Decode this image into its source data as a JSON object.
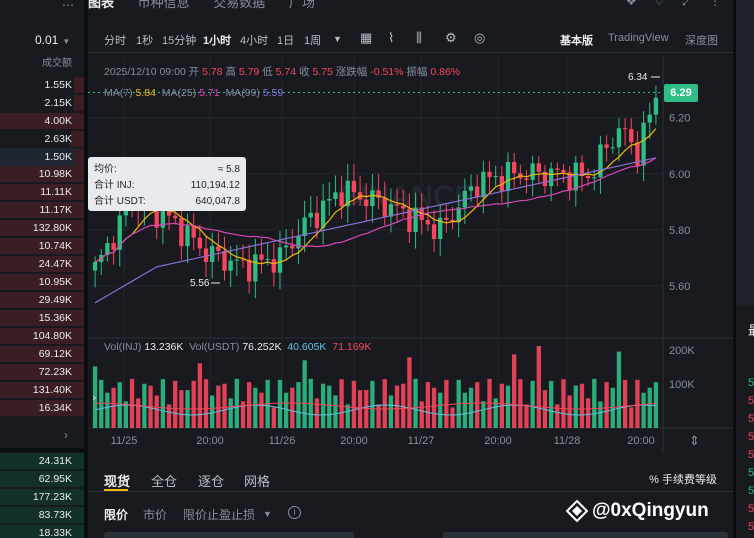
{
  "orderbook": {
    "more_icon": "⋯",
    "precision": "0.01",
    "header": "成交额",
    "asks": [
      {
        "value": "1.55K",
        "depth": 0.1
      },
      {
        "value": "2.15K",
        "depth": 0.12
      },
      {
        "value": "4.00K",
        "depth": 1.0
      },
      {
        "value": "2.63K",
        "depth": 0.15
      },
      {
        "value": "1.50K",
        "depth": 0.08
      }
    ],
    "asks2": [
      {
        "value": "10.98K",
        "depth": 1.0
      },
      {
        "value": "11.11K",
        "depth": 1.0
      },
      {
        "value": "11.17K",
        "depth": 1.0
      },
      {
        "value": "132.80K",
        "depth": 1.0
      },
      {
        "value": "10.74K",
        "depth": 1.0
      },
      {
        "value": "24.47K",
        "depth": 1.0
      },
      {
        "value": "10.95K",
        "depth": 1.0
      },
      {
        "value": "29.49K",
        "depth": 1.0
      },
      {
        "value": "15.36K",
        "depth": 1.0
      },
      {
        "value": "104.80K",
        "depth": 1.0
      },
      {
        "value": "69.12K",
        "depth": 1.0
      },
      {
        "value": "72.23K",
        "depth": 1.0
      },
      {
        "value": "131.40K",
        "depth": 1.0
      },
      {
        "value": "16.34K",
        "depth": 1.0
      }
    ],
    "arrow": "›",
    "bids": [
      {
        "value": "24.31K",
        "depth": 1.0
      },
      {
        "value": "62.95K",
        "depth": 1.0
      },
      {
        "value": "177.23K",
        "depth": 1.0
      },
      {
        "value": "83.73K",
        "depth": 1.0
      },
      {
        "value": "18.33K",
        "depth": 1.0
      }
    ]
  },
  "top_tabs": {
    "items": [
      "图表",
      "币种信息",
      "交易数据",
      "广场"
    ]
  },
  "toolbar": {
    "intervals": [
      "分时",
      "1秒",
      "15分钟",
      "1小时",
      "4小时",
      "1日",
      "1周"
    ],
    "active_interval": "1小时",
    "views": [
      "基本版",
      "TradingView",
      "深度图"
    ],
    "active_view": "基本版"
  },
  "ohlc": {
    "date": "2025/12/10 09:00",
    "open_label": "开",
    "open": "5.78",
    "high_label": "高",
    "high": "5.79",
    "low_label": "低",
    "low": "5.74",
    "close_label": "收",
    "close": "5.75",
    "change_label": "涨跌幅",
    "change": "-0.51%",
    "amp_label": "振幅",
    "amp": "0.86%"
  },
  "ma": {
    "ma7_label": "MA(7)",
    "ma7": "5.84",
    "ma25_label": "MA(25)",
    "ma25": "5.71",
    "ma99_label": "MA(99)",
    "ma99": "5.59"
  },
  "vol": {
    "inj_label": "Vol(INJ)",
    "inj": "13.236K",
    "usdt_label": "Vol(USDT)",
    "usdt": "76.252K",
    "v1": "40.605K",
    "v2": "71.169K"
  },
  "tooltip": {
    "avg_label": "均价:",
    "avg": "≈ 5.8",
    "inj_label": "合计 INJ:",
    "inj": "110,194.12",
    "usdt_label": "合计 USDT:",
    "usdt": "640,047.8"
  },
  "current_price": "6.29",
  "colors": {
    "up": "#2ebd85",
    "down": "#f6465d",
    "ma7": "#f0b90b",
    "ma25": "#d547b6",
    "ma99": "#8b6fd6",
    "accent": "#f0b90b"
  },
  "chart_data": {
    "type": "candlestick",
    "price_axis": [
      "6.20",
      "6.00",
      "5.80",
      "5.60"
    ],
    "volume_axis": [
      "200K",
      "100K"
    ],
    "x_labels": [
      "11/25",
      "20:00",
      "11/26",
      "20:00",
      "11/27",
      "20:00",
      "11/28",
      "20:00"
    ],
    "high_marker": "6.34",
    "low_marker": "5.56",
    "watermark": "BINANCE"
  },
  "bottom": {
    "tabs": [
      "现货",
      "全仓",
      "逐仓",
      "网格"
    ],
    "fee_label": "手续费等级",
    "order_types": [
      "限价",
      "市价",
      "限价止盈止损"
    ],
    "info": "i"
  },
  "right_panel": {
    "numbers": [
      "5",
      "5",
      "5",
      "5",
      "5",
      "5",
      "5",
      "5",
      "5",
      "5"
    ]
  },
  "watermark": {
    "text": "@0xQingyun"
  }
}
